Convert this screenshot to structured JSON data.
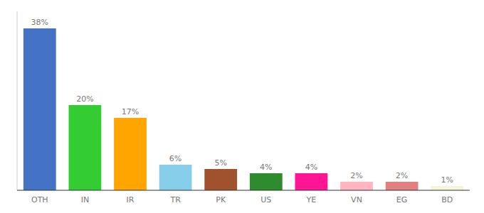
{
  "chart_data": {
    "type": "bar",
    "categories": [
      "OTH",
      "IN",
      "IR",
      "TR",
      "PK",
      "US",
      "YE",
      "VN",
      "EG",
      "BD"
    ],
    "values": [
      38,
      20,
      17,
      6,
      5,
      4,
      4,
      2,
      2,
      1
    ],
    "value_labels": [
      "38%",
      "20%",
      "17%",
      "6%",
      "5%",
      "4%",
      "4%",
      "2%",
      "2%",
      "1%"
    ],
    "colors": [
      "#4472C4",
      "#33CC33",
      "#FFA500",
      "#87CEEB",
      "#A0522D",
      "#2E8B2E",
      "#FF1493",
      "#FFB6C1",
      "#E08080",
      "#F5F5DC"
    ],
    "ylim": [
      0,
      42
    ],
    "data_labels": true,
    "tick_labels": "x",
    "grid": false
  }
}
